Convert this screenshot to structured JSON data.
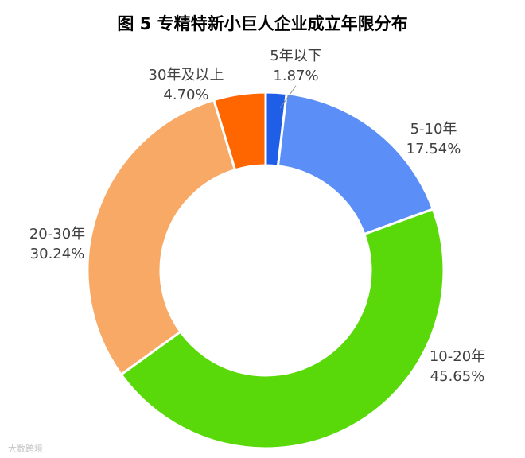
{
  "title": "图 5 专精特新小巨人企业成立年限分布",
  "watermark": "大数跨境",
  "chart_data": {
    "type": "pie",
    "donut": true,
    "title": "图 5 专精特新小巨人企业成立年限分布",
    "categories": [
      "5年以下",
      "5-10年",
      "10-20年",
      "20-30年",
      "30年及以上"
    ],
    "values": [
      1.87,
      17.54,
      45.65,
      30.24,
      4.7
    ],
    "value_labels": [
      "1.87%",
      "17.54%",
      "45.65%",
      "30.24%",
      "4.70%"
    ],
    "colors": [
      "#1F5FE8",
      "#5B8EF7",
      "#5AD90A",
      "#F7A965",
      "#FF6600"
    ],
    "legend": "none"
  }
}
